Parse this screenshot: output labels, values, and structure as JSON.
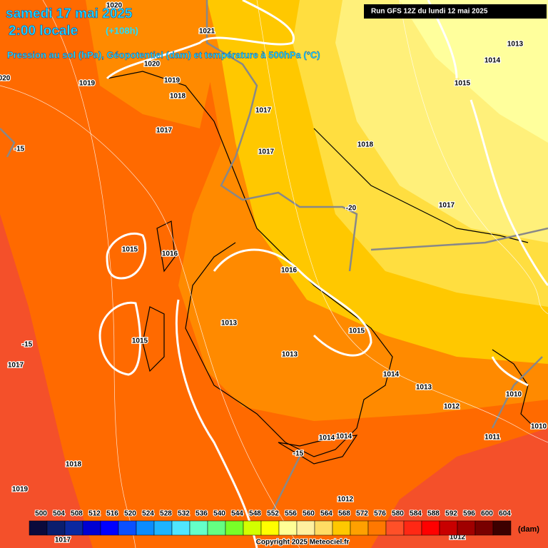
{
  "header": {
    "date": "samedi 17 mai 2025",
    "time": "2:00 locale",
    "lead": "(+108h)",
    "subtitle": "Pression au sol (hPa), Géopotentiel (dam) et température à 500hPa (°C)",
    "run": "Run GFS 12Z du lundi 12 mai 2025"
  },
  "map": {
    "pressure_labels": [
      "1020",
      "1021",
      "1020",
      "1019",
      "1019",
      "1018",
      "020",
      "1017",
      "1017",
      "1017",
      "1018",
      "1013",
      "1014",
      "1015",
      "1017",
      "1015",
      "1016",
      "1016",
      "1013",
      "1015",
      "1015",
      "1013",
      "1017",
      "1014",
      "1013",
      "1010",
      "1012",
      "1011",
      "1010",
      "1014",
      "1014",
      "1018",
      "1019",
      "1012",
      "1012",
      "1017"
    ],
    "temperature_labels": [
      "-15",
      "-20",
      "-15",
      "-15"
    ]
  },
  "legend": {
    "levels": [
      "500",
      "504",
      "508",
      "512",
      "516",
      "520",
      "524",
      "528",
      "532",
      "536",
      "540",
      "544",
      "548",
      "552",
      "556",
      "560",
      "564",
      "568",
      "572",
      "576",
      "580",
      "584",
      "588",
      "592",
      "596",
      "600",
      "604"
    ],
    "colors": [
      "#0a0a3c",
      "#0a1e6e",
      "#0a28a0",
      "#0000d2",
      "#0000ff",
      "#0a50ff",
      "#0a8cff",
      "#1eb4ff",
      "#50e6ff",
      "#64ffc8",
      "#64ff82",
      "#78ff28",
      "#d2ff00",
      "#ffff00",
      "#ffff96",
      "#fff0a0",
      "#ffdc64",
      "#ffc800",
      "#ffa000",
      "#ff7800",
      "#ff5028",
      "#ff2814",
      "#ff0000",
      "#c80000",
      "#a00000",
      "#780000",
      "#3c0000"
    ],
    "unit": "(dam)"
  },
  "footer": {
    "copyright": "Copyright 2025 Meteociel.fr"
  }
}
